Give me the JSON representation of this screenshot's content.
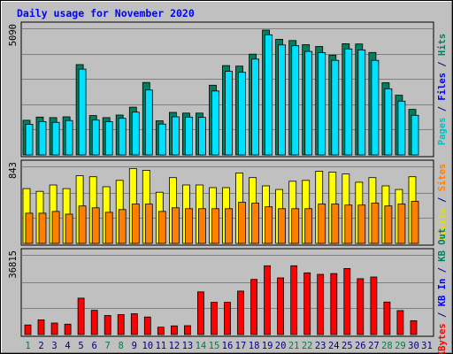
{
  "chart_data": {
    "type": "bar",
    "title": "Daily usage for November 2020",
    "categories": [
      "1",
      "2",
      "3",
      "4",
      "5",
      "6",
      "7",
      "8",
      "9",
      "10",
      "11",
      "12",
      "13",
      "14",
      "15",
      "16",
      "17",
      "18",
      "19",
      "20",
      "21",
      "22",
      "23",
      "24",
      "25",
      "26",
      "27",
      "28",
      "29",
      "30",
      "31"
    ],
    "weekend_days": [
      1,
      7,
      8,
      14,
      15,
      21,
      22,
      28,
      29
    ],
    "colors": {
      "background": "#c0c0c0",
      "frame": "#000000",
      "gridline": "#808080",
      "title": "#0000ff",
      "weekday_label": "#000080",
      "weekend_label": "#008040",
      "hits": "#008060",
      "files": "#00e0ff",
      "pages": "#00e0ff",
      "visits": "#ffff00",
      "sites": "#ff8000",
      "kb_in": "#ff0000"
    },
    "panels": [
      {
        "id": "hits-files-pages",
        "max_label": "5090",
        "y_max": 5090,
        "side_label": [
          {
            "text": "Pages",
            "color": "#00c0c0"
          },
          {
            "text": " / ",
            "color": "#000080"
          },
          {
            "text": "Files",
            "color": "#0000ff"
          },
          {
            "text": " / ",
            "color": "#000080"
          },
          {
            "text": "Hits",
            "color": "#008060"
          }
        ],
        "series": [
          {
            "key": "hits",
            "values": [
              1390,
              1520,
              1500,
              1530,
              3630,
              1580,
              1500,
              1600,
              1920,
              2910,
              1370,
              1710,
              1680,
              1680,
              2800,
              3590,
              3570,
              4050,
              5020,
              4650,
              4600,
              4430,
              4360,
              4010,
              4470,
              4460,
              4120,
              2900,
              2400,
              1830,
              0
            ]
          },
          {
            "key": "files",
            "values": [
              1230,
              1340,
              1310,
              1380,
              3450,
              1400,
              1330,
              1470,
              1720,
              2610,
              1240,
              1530,
              1520,
              1510,
              2570,
              3360,
              3320,
              3850,
              4830,
              4420,
              4390,
              4160,
              4110,
              3800,
              4260,
              4220,
              3800,
              2660,
              2160,
              1590,
              0
            ]
          }
        ]
      },
      {
        "id": "visits-sites",
        "max_label": "843",
        "y_max": 843,
        "side_label": [
          {
            "text": "Visits",
            "color": "#e0e000"
          },
          {
            "text": " / ",
            "color": "#000080"
          },
          {
            "text": "Sites",
            "color": "#ff8000"
          }
        ],
        "series": [
          {
            "key": "visits",
            "values": [
              600,
              570,
              640,
              600,
              740,
              730,
              620,
              690,
              820,
              800,
              560,
              720,
              640,
              640,
              610,
              610,
              770,
              720,
              630,
              590,
              680,
              690,
              790,
              780,
              760,
              670,
              720,
              630,
              590,
              730,
              0
            ]
          },
          {
            "key": "sites",
            "values": [
              330,
              330,
              350,
              320,
              410,
              390,
              340,
              370,
              430,
              430,
              350,
              390,
              380,
              380,
              380,
              380,
              450,
              440,
              400,
              380,
              380,
              380,
              430,
              430,
              420,
              420,
              440,
              410,
              430,
              460,
              0
            ]
          }
        ]
      },
      {
        "id": "kbytes",
        "max_label": "36815",
        "y_max": 36815,
        "side_label": [
          {
            "text": "KBytes",
            "color": "#ff0000"
          },
          {
            "text": " / ",
            "color": "#000080"
          },
          {
            "text": "KB In",
            "color": "#0000ff"
          },
          {
            "text": " / ",
            "color": "#000080"
          },
          {
            "text": "KB Out",
            "color": "#008060"
          }
        ],
        "series": [
          {
            "key": "kb_in",
            "values": [
              4400,
              6800,
              5300,
              4800,
              16800,
              11200,
              8800,
              9200,
              9600,
              8100,
              3400,
              4000,
              4100,
              19700,
              14900,
              14900,
              20100,
              25500,
              31800,
              26200,
              31800,
              28500,
              27800,
              28200,
              30500,
              25800,
              26600,
              15000,
              11100,
              6400,
              0
            ]
          }
        ]
      }
    ]
  }
}
